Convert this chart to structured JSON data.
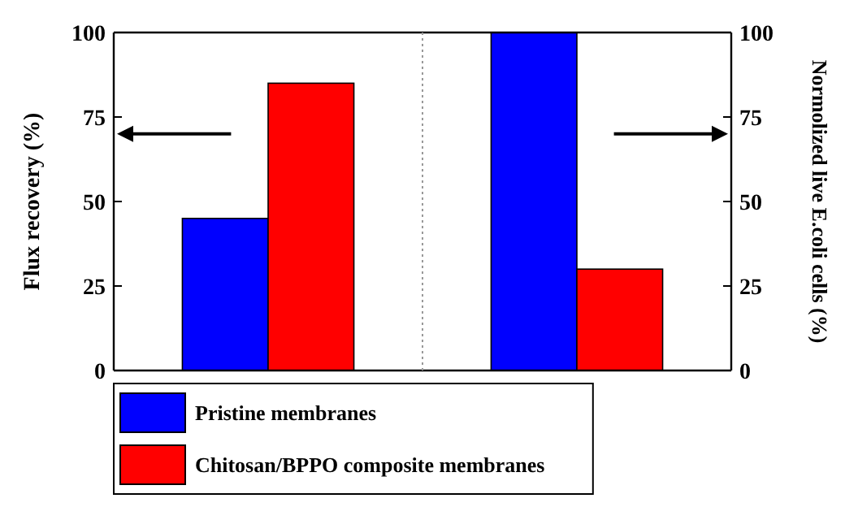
{
  "chart_data": [
    {
      "type": "bar",
      "ylabel": "Flux recovery (%)",
      "categories": [
        null
      ],
      "series": [
        {
          "name": "Pristine membranes",
          "color": "#0000ff",
          "values": [
            45
          ]
        },
        {
          "name": "Chitosan/BPPO composite membranes",
          "color": "#ff0000",
          "values": [
            85
          ]
        }
      ],
      "ylim": [
        0,
        100
      ],
      "yticks": [
        0,
        25,
        50,
        75,
        100
      ],
      "legend": "bottom"
    },
    {
      "type": "bar",
      "ylabel": "Normolized live E.coli cells (%)",
      "categories": [
        null
      ],
      "series": [
        {
          "color": "#0000ff",
          "values": [
            100
          ]
        },
        {
          "color": "#ff0000",
          "values": [
            30
          ]
        }
      ],
      "ylim": [
        0,
        100
      ],
      "yticks": [
        0,
        25,
        50,
        75,
        100
      ]
    }
  ]
}
